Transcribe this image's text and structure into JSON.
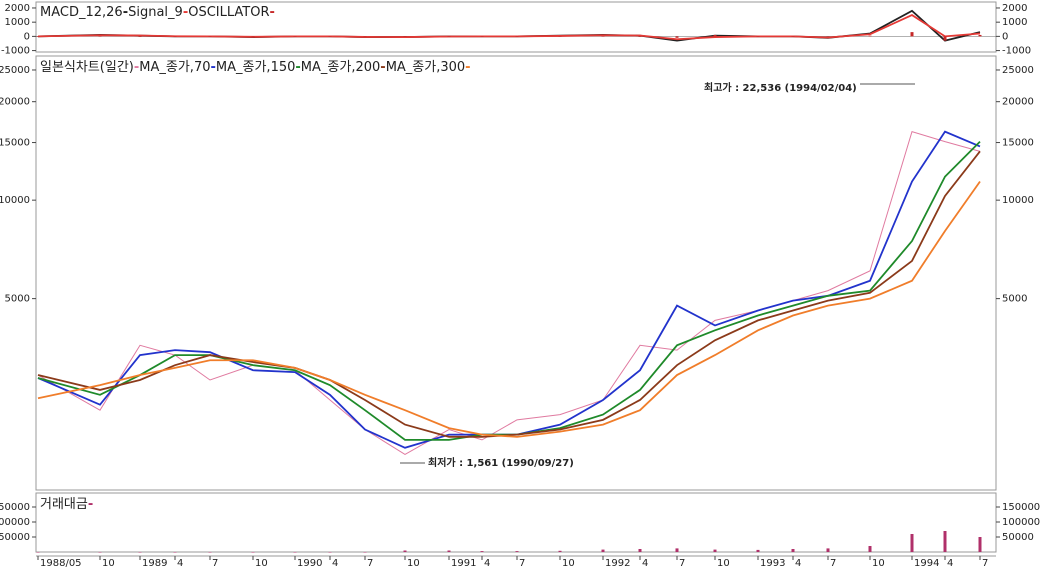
{
  "chart_data": [
    {
      "type": "line",
      "series": [
        {
          "name": "MACD_12,26",
          "color": "#222222",
          "values": [
            0,
            100,
            50,
            0,
            0,
            -50,
            0,
            0,
            -50,
            -50,
            0,
            0,
            0,
            50,
            100,
            50,
            -300,
            50,
            0,
            0,
            -100,
            200,
            1800,
            -300,
            300
          ]
        },
        {
          "name": "Signal_9",
          "color": "#e53935",
          "values": [
            0,
            80,
            60,
            10,
            0,
            -30,
            0,
            0,
            -40,
            -50,
            -10,
            0,
            0,
            30,
            80,
            60,
            -200,
            -50,
            0,
            0,
            -80,
            150,
            1500,
            0,
            200
          ]
        },
        {
          "name": "OSCILLATOR",
          "color": "#c62828",
          "style": "bar",
          "values": [
            0,
            20,
            -10,
            -10,
            0,
            -20,
            0,
            0,
            -10,
            0,
            10,
            0,
            0,
            20,
            20,
            -10,
            -100,
            100,
            0,
            0,
            -20,
            50,
            300,
            -300,
            100
          ]
        }
      ],
      "ylim": [
        -1100,
        2350
      ],
      "yticks": [
        2000,
        1000,
        0,
        -1000
      ]
    },
    {
      "type": "line",
      "log_scale": true,
      "series": [
        {
          "name": "일본식차트(일간)",
          "color": "#e07aa0",
          "values": [
            2920,
            2280,
            3600,
            3360,
            2820,
            3130,
            3020,
            2450,
            1990,
            1670,
            1990,
            1850,
            2130,
            2210,
            2450,
            3600,
            3480,
            4290,
            4600,
            4930,
            5290,
            6080,
            16200,
            15100,
            14100
          ]
        },
        {
          "name": "MA_종가,70",
          "color": "#2233cc",
          "values": [
            2860,
            2370,
            3360,
            3480,
            3430,
            3020,
            2980,
            2540,
            1990,
            1750,
            1920,
            1920,
            1920,
            2060,
            2450,
            3020,
            4760,
            4140,
            4600,
            4930,
            5100,
            5670,
            11400,
            16200,
            14600
          ]
        },
        {
          "name": "MA_종가,150",
          "color": "#1f8a2a",
          "values": [
            2860,
            2540,
            2920,
            3360,
            3360,
            3130,
            3020,
            2720,
            2280,
            1850,
            1850,
            1920,
            1920,
            2010,
            2210,
            2630,
            3600,
            4000,
            4440,
            4760,
            5100,
            5290,
            7500,
            11800,
            15100
          ]
        },
        {
          "name": "MA_종가,200",
          "color": "#8b3a1a",
          "values": [
            2920,
            2630,
            2820,
            3130,
            3360,
            3200,
            3070,
            2820,
            2450,
            2060,
            1890,
            1890,
            1920,
            1990,
            2130,
            2450,
            3130,
            3730,
            4290,
            4600,
            4930,
            5210,
            6520,
            10300,
            14100
          ]
        },
        {
          "name": "MA_종가,300",
          "color": "#f07d2a",
          "values": [
            2480,
            2720,
            2920,
            3070,
            3240,
            3240,
            3070,
            2820,
            2540,
            2280,
            2010,
            1920,
            1890,
            1960,
            2060,
            2280,
            2920,
            3360,
            4000,
            4440,
            4760,
            5000,
            5670,
            8050,
            11400
          ]
        }
      ],
      "ylim": [
        1300,
        27200
      ],
      "yticks": [
        25000,
        20000,
        15000,
        10000,
        5000
      ],
      "annotations": [
        {
          "text": "최고가 : 22,536 (1994/02/04)",
          "color": "#e53935"
        },
        {
          "text": "최저가 : 1,561 (1990/09/27)",
          "color": "#2233cc"
        }
      ]
    },
    {
      "type": "bar",
      "categories": [
        "1988/05",
        "10",
        "1989",
        "4",
        "7",
        "10",
        "1990",
        "4",
        "7",
        "10",
        "1991",
        "4",
        "7",
        "10",
        "1992",
        "4",
        "7",
        "10",
        "1993",
        "4",
        "7",
        "10",
        "1994",
        "4",
        "7"
      ],
      "series": [
        {
          "name": "거래대금",
          "color": "#b0306a",
          "values": [
            0,
            0,
            0,
            0,
            0,
            0,
            0,
            0,
            0,
            5000,
            5000,
            3000,
            3000,
            4000,
            8000,
            10000,
            12000,
            8000,
            7000,
            10000,
            12000,
            20000,
            60000,
            70000,
            50000
          ]
        }
      ],
      "ylim": [
        0,
        190000
      ],
      "yticks": [
        150000,
        100000,
        50000
      ]
    }
  ]
}
